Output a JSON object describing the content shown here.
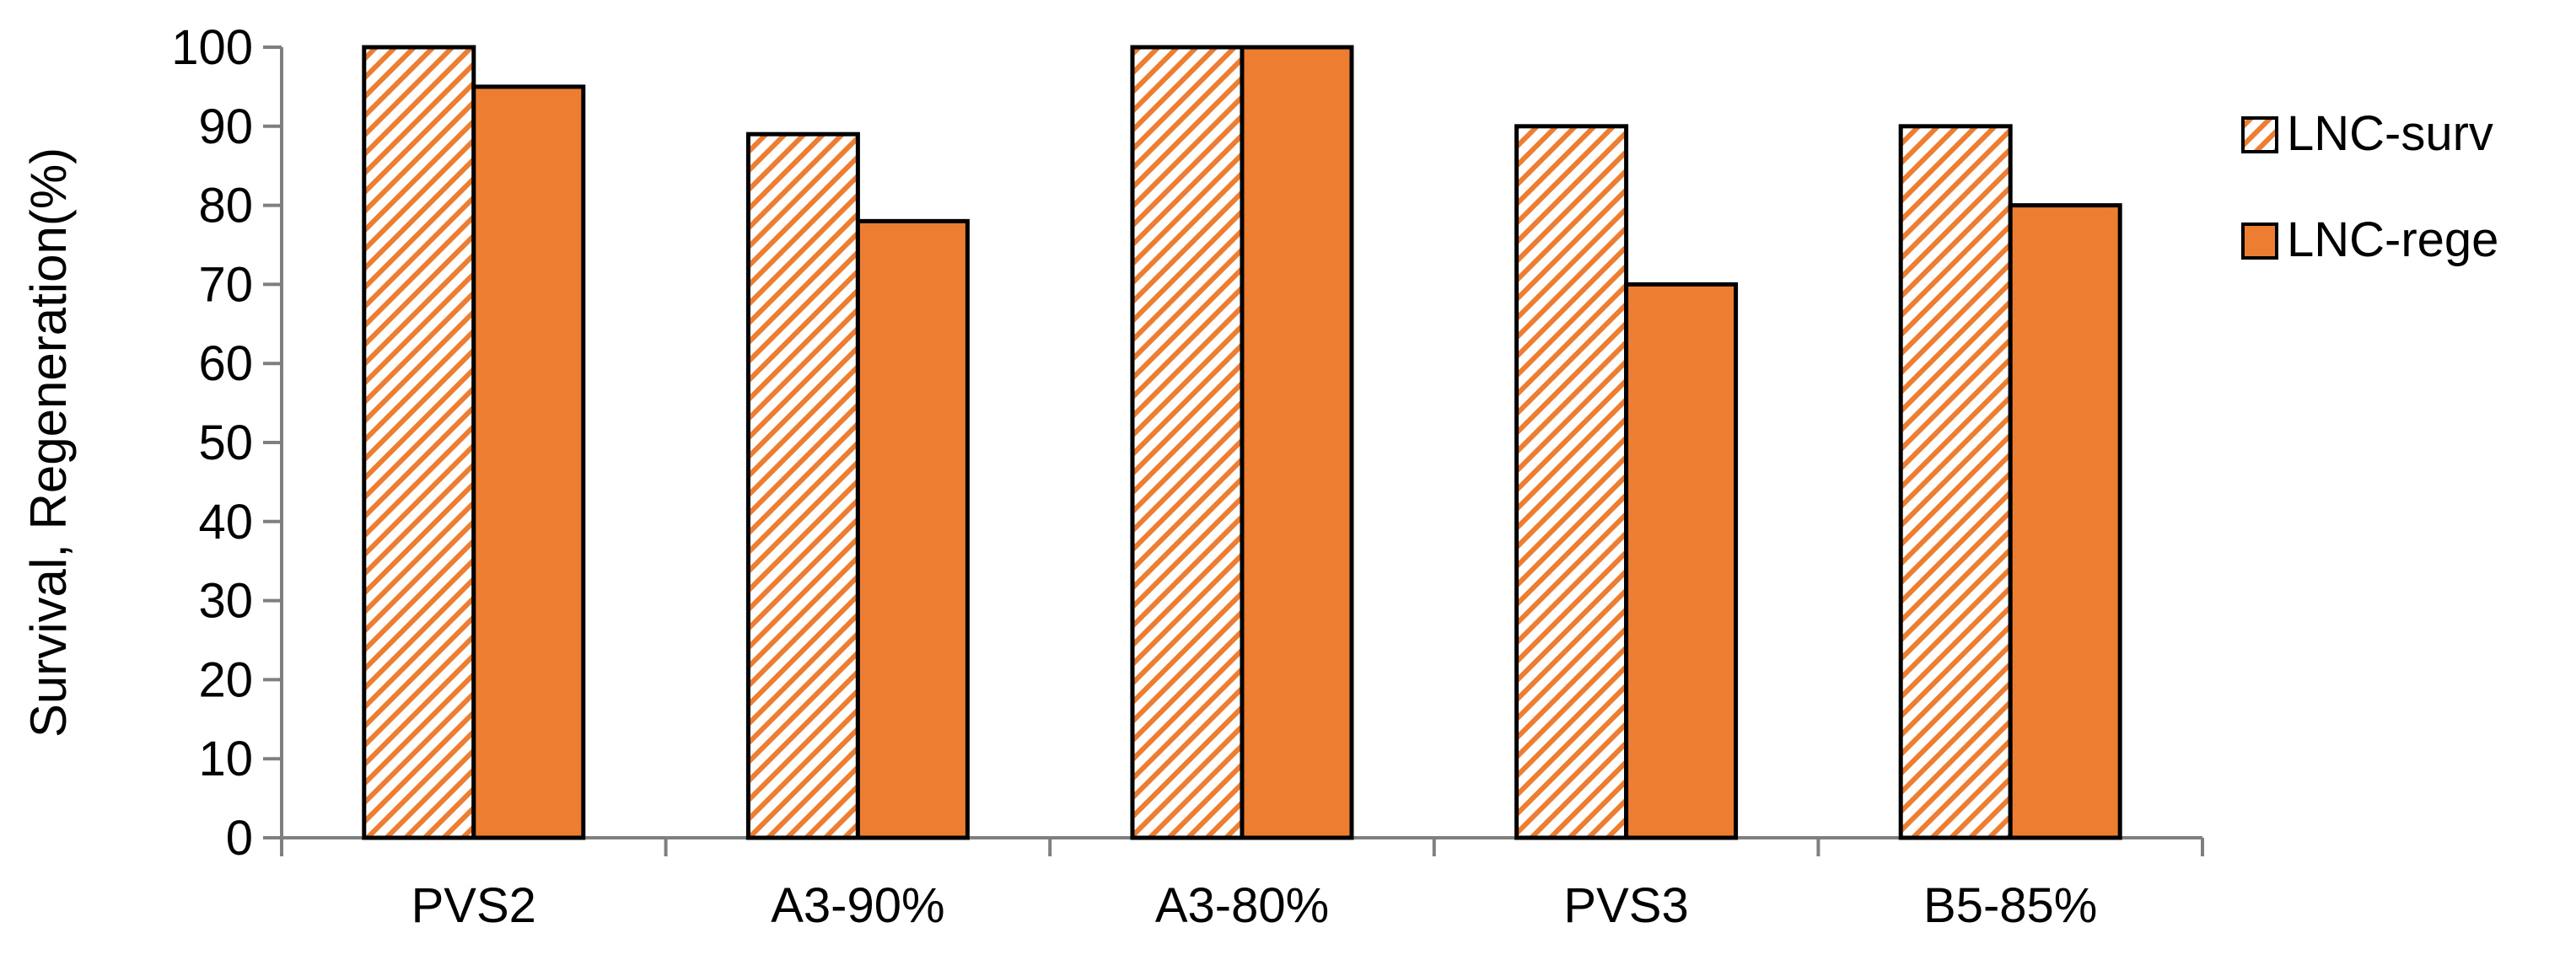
{
  "chart_data": {
    "type": "bar",
    "title": "",
    "xlabel": "",
    "ylabel": "Survival,  Regeneration(%)",
    "ylim": [
      0,
      100
    ],
    "yticks": [
      0,
      10,
      20,
      30,
      40,
      50,
      60,
      70,
      80,
      90,
      100
    ],
    "ytick_labels": [
      "0",
      "10",
      "20",
      "30",
      "40",
      "50",
      "60",
      "70",
      "80",
      "90",
      "100"
    ],
    "categories": [
      "PVS2",
      "A3-90%",
      "A3-80%",
      "PVS3",
      "B5-85%"
    ],
    "series": [
      {
        "name": "LNC-surv",
        "values": [
          100,
          89,
          100,
          90,
          90
        ],
        "color": "#ED7D31",
        "fill": "hatched"
      },
      {
        "name": "LNC-rege",
        "values": [
          95,
          78,
          100,
          70,
          80
        ],
        "color": "#ED7D31",
        "fill": "solid"
      }
    ],
    "grid": false,
    "legend": "right"
  }
}
